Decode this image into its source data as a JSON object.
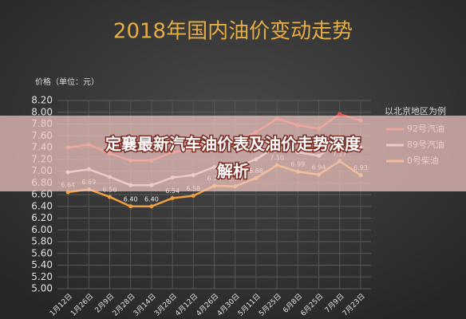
{
  "chart_data": {
    "type": "line",
    "title": "2018年国内油价变动走势",
    "y_label": "价格（单位：元）",
    "legend_title": "以北京地区为例",
    "categories": [
      "1月12日",
      "1月26日",
      "2月9日",
      "2月28日",
      "3月14日",
      "3月28日",
      "4月12日",
      "4月26日",
      "4月30日",
      "5月11日",
      "5月25日",
      "6月8日",
      "6月25日",
      "7月9日",
      "7月23日"
    ],
    "series": [
      {
        "name": "92号汽油",
        "color": "#e0524f",
        "values": [
          7.4,
          7.45,
          7.3,
          7.18,
          7.18,
          7.32,
          7.37,
          7.52,
          7.51,
          7.66,
          7.89,
          7.78,
          7.72,
          7.97,
          7.86
        ]
      },
      {
        "name": "89号汽油",
        "color": "#d8d8d8",
        "values": [
          6.98,
          7.03,
          6.9,
          6.76,
          6.76,
          6.89,
          6.93,
          7.07,
          7.06,
          7.2,
          7.42,
          7.32,
          7.26,
          7.49,
          7.4
        ]
      },
      {
        "name": "0号柴油",
        "color": "#f0a040",
        "values": [
          6.64,
          6.69,
          6.56,
          6.4,
          6.4,
          6.54,
          6.58,
          6.75,
          6.74,
          6.88,
          7.1,
          6.99,
          6.94,
          7.17,
          6.93
        ],
        "value_labels": [
          "6.64",
          "6.69",
          "6.56",
          "6.40",
          "6.40",
          "6.54",
          "6.58",
          "6.75",
          "6.74",
          "6.88",
          "7.10",
          "6.99",
          "6.94",
          "7.17",
          "6.93"
        ]
      }
    ],
    "ylim": [
      5.0,
      8.2
    ],
    "yticks": [
      {
        "value": 5.0,
        "label": "5.00"
      },
      {
        "value": 5.2,
        "label": "5.20"
      },
      {
        "value": 5.4,
        "label": "5.40"
      },
      {
        "value": 5.6,
        "label": "5.60"
      },
      {
        "value": 5.8,
        "label": "5.80"
      },
      {
        "value": 6.0,
        "label": "6.00"
      },
      {
        "value": 6.2,
        "label": "6.20"
      },
      {
        "value": 6.4,
        "label": "6.40"
      },
      {
        "value": 6.6,
        "label": "6.60"
      },
      {
        "value": 6.8,
        "label": "6.80"
      },
      {
        "value": 7.0,
        "label": "7.00"
      },
      {
        "value": 7.2,
        "label": "7.20"
      },
      {
        "value": 7.4,
        "label": "7.40"
      },
      {
        "value": 7.6,
        "label": "7.60"
      },
      {
        "value": 7.8,
        "label": "7.80"
      },
      {
        "value": 8.0,
        "label": "8.00"
      },
      {
        "value": 8.2,
        "label": "8.20"
      }
    ],
    "grid": true
  },
  "banner": {
    "lines": [
      "定襄最新汽车油价表及油价走势深度",
      "解析"
    ]
  }
}
